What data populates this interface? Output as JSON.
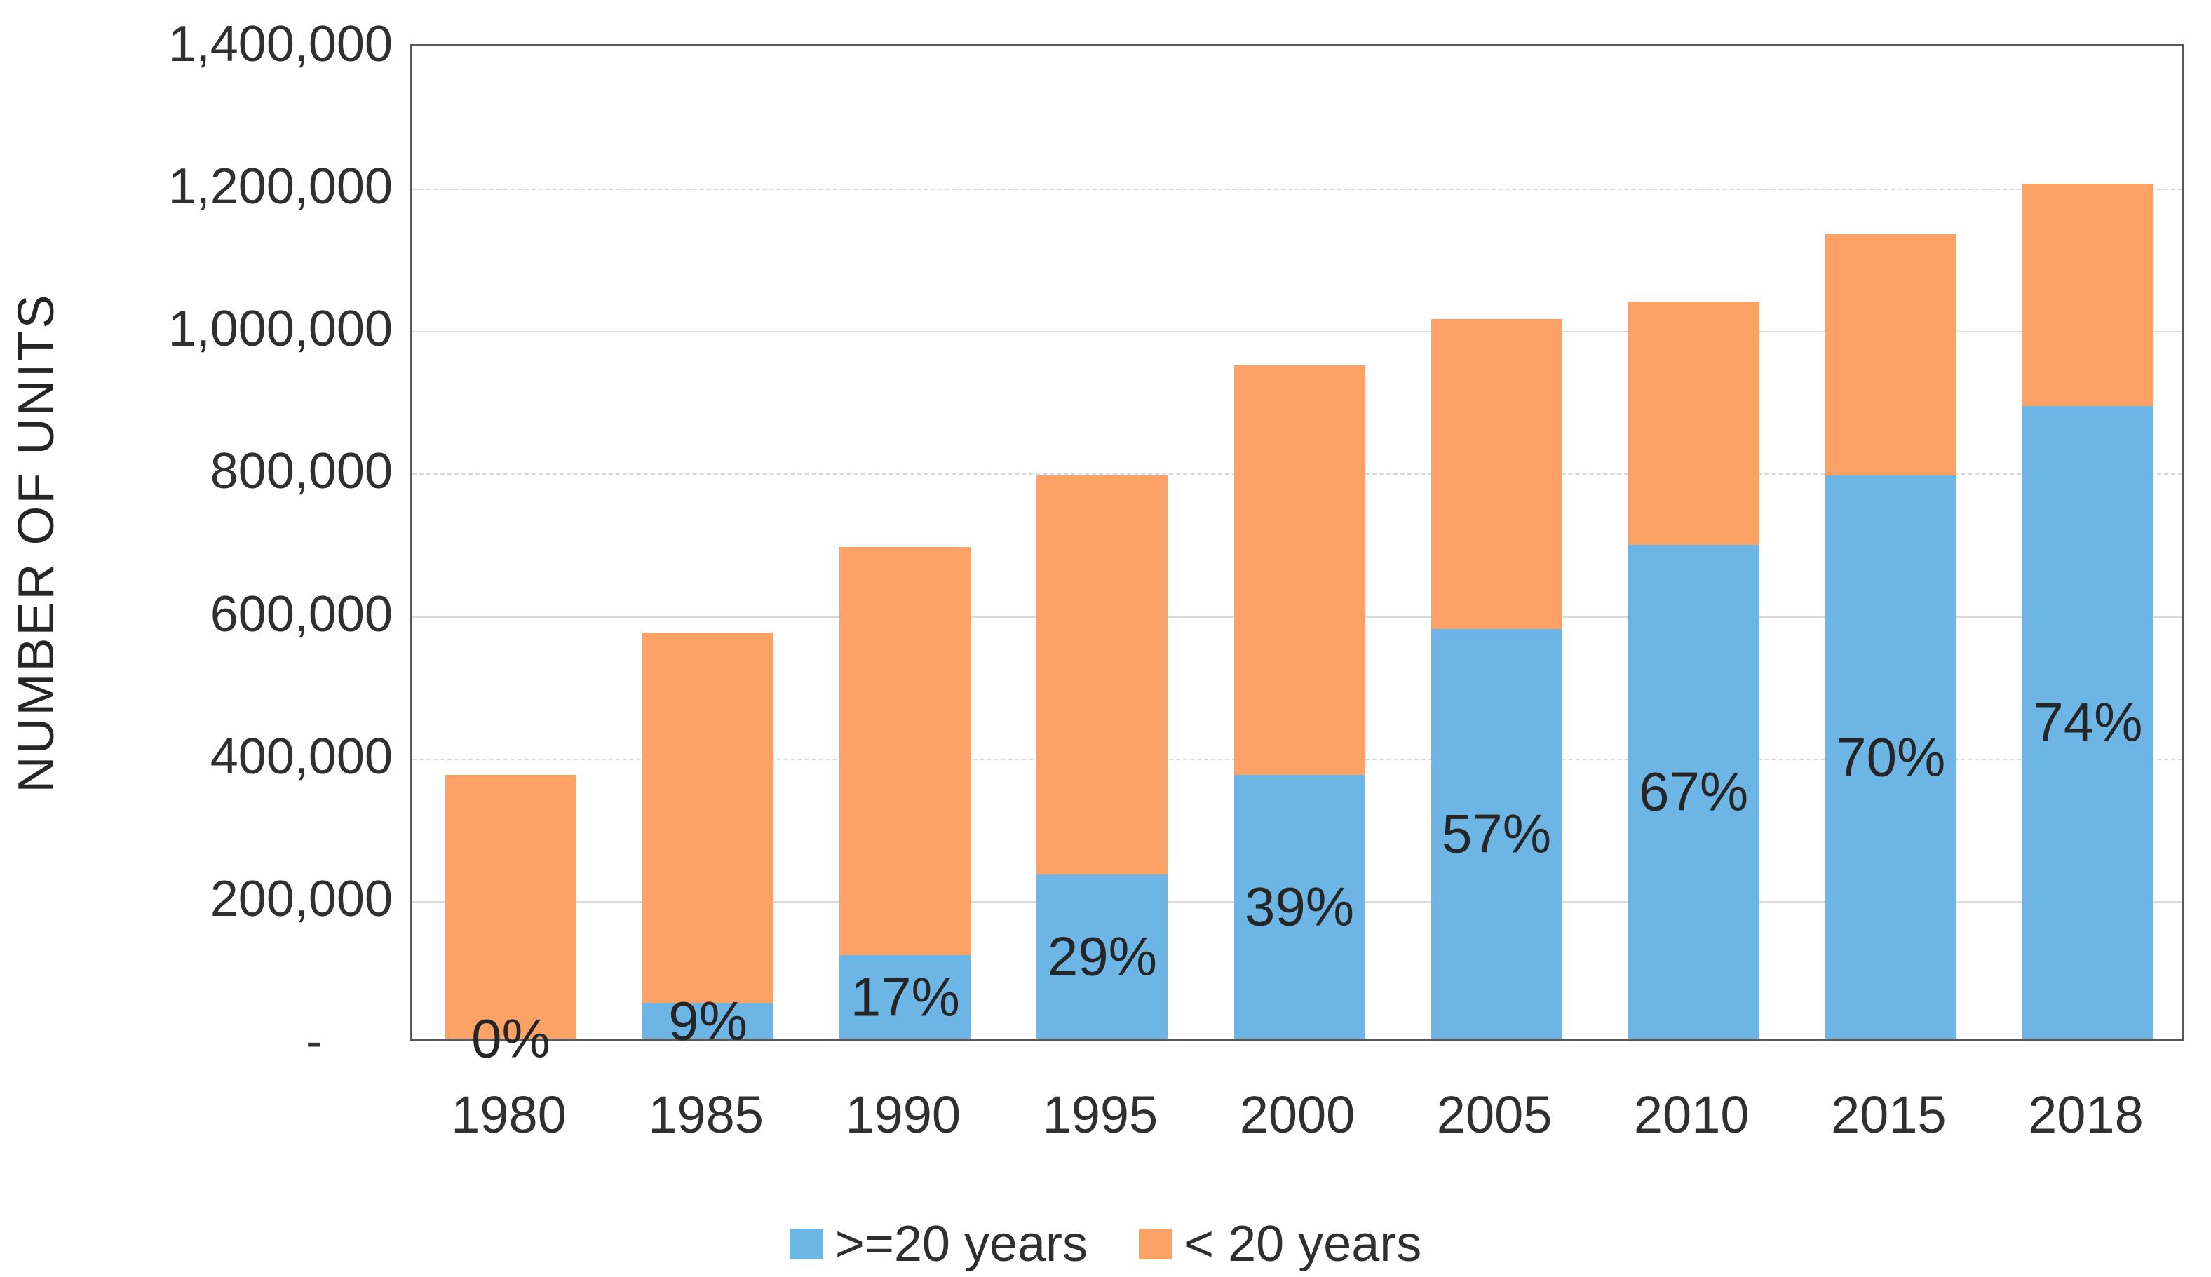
{
  "chart_data": {
    "type": "bar",
    "stacked": true,
    "title": "",
    "xlabel": "",
    "ylabel": "NUMBER OF UNITS",
    "ylim": [
      0,
      1400000
    ],
    "grid": true,
    "legend_position": "bottom",
    "categories": [
      "1980",
      "1985",
      "1990",
      "1995",
      "2000",
      "2005",
      "2010",
      "2015",
      "2018"
    ],
    "series": [
      {
        "name": ">=20 years",
        "color": "#6db5e5",
        "values": [
          0,
          50000,
          117000,
          230000,
          370000,
          575000,
          693000,
          791000,
          888000
        ]
      },
      {
        "name": "< 20 years",
        "color": "#fca267",
        "values": [
          370000,
          520000,
          573000,
          560000,
          575000,
          435000,
          342000,
          339000,
          312000
        ]
      }
    ],
    "totals": [
      370000,
      570000,
      690000,
      790000,
      945000,
      1010000,
      1035000,
      1130000,
      1200000
    ],
    "bar_labels": [
      "0%",
      "9%",
      "17%",
      "29%",
      "39%",
      "57%",
      "67%",
      "70%",
      "74%"
    ],
    "y_ticks": [
      {
        "label": "1,400,000",
        "value": 1400000
      },
      {
        "label": "1,200,000",
        "value": 1200000
      },
      {
        "label": "1,000,000",
        "value": 1000000
      },
      {
        "label": "800,000",
        "value": 800000
      },
      {
        "label": "600,000",
        "value": 600000
      },
      {
        "label": "400,000",
        "value": 400000
      },
      {
        "label": "200,000",
        "value": 200000
      },
      {
        "label": "-",
        "value": 0
      }
    ]
  },
  "colors": {
    "blue_series": "#6db5e5",
    "orange_series": "#fca267",
    "axis_border": "#595959",
    "gridline": "#d9d9d9",
    "text": "#2b2b2b"
  }
}
